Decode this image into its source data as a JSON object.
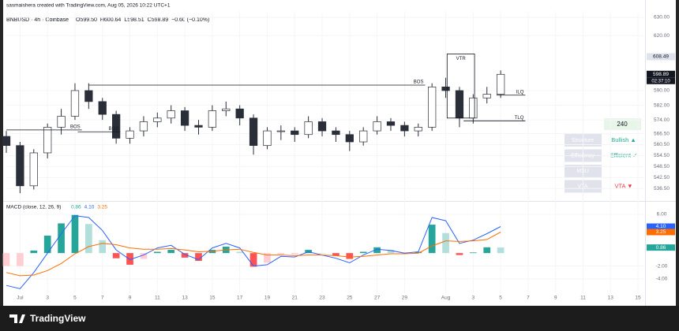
{
  "header": {
    "byline": "sasmaishera created with TradingView.com, Aug 05, 2026 10:22 UTC+1",
    "symbol": "BNBUSD · 4h · Coinbase",
    "ohlc": [
      "O599.50",
      "H600.64",
      "L598.51",
      "C598.89",
      "−0.60 (−0.10%)"
    ]
  },
  "chart_data": [
    {
      "type": "candlestick",
      "title": "BNBUSD · 4h · Coinbase",
      "x": [
        0,
        1,
        2,
        3,
        4,
        5,
        6,
        7,
        8,
        9,
        10,
        11,
        12,
        13,
        14,
        15,
        16,
        17,
        18,
        19,
        20,
        21,
        22,
        23,
        24,
        25,
        26,
        27,
        28,
        29,
        30,
        31,
        32,
        33,
        34,
        35,
        36
      ],
      "open": [
        565,
        560,
        538,
        556,
        570,
        576,
        590,
        584,
        577,
        564,
        568,
        573,
        575,
        579,
        571,
        570,
        579,
        580,
        575,
        560,
        568,
        568,
        566,
        573,
        568,
        566,
        562,
        568,
        573,
        571,
        568,
        570,
        592,
        590,
        575,
        586,
        588
      ],
      "high": [
        568,
        562,
        558,
        572,
        580,
        594,
        594,
        586,
        579,
        570,
        576,
        578,
        582,
        581,
        574,
        582,
        584,
        582,
        577,
        570,
        571,
        570,
        576,
        575,
        570,
        568,
        570,
        576,
        575,
        573,
        572,
        594,
        597,
        592,
        588,
        592,
        601
      ],
      "low": [
        556,
        534,
        536,
        553,
        566,
        574,
        580,
        574,
        561,
        561,
        565,
        570,
        572,
        568,
        566,
        568,
        576,
        571,
        555,
        558,
        563,
        562,
        564,
        565,
        562,
        557,
        560,
        566,
        568,
        565,
        565,
        568,
        586,
        570,
        572,
        583,
        586
      ],
      "close": [
        560,
        538,
        556,
        570,
        576,
        590,
        584,
        577,
        564,
        568,
        573,
        575,
        579,
        571,
        570,
        579,
        580,
        575,
        560,
        568,
        568,
        566,
        573,
        568,
        566,
        562,
        568,
        573,
        571,
        568,
        570,
        592,
        590,
        575,
        586,
        588,
        598.89
      ],
      "up_color": "#ffffff",
      "down_color": "#2a2e39",
      "wick_color": "#2a2e39",
      "xlim": [
        0,
        46.4
      ],
      "xticks": [
        {
          "value": 1,
          "label": "Jul"
        },
        3,
        5,
        7,
        9,
        11,
        13,
        15,
        17,
        19,
        21,
        23,
        25,
        27,
        29,
        {
          "value": 32,
          "label": "Aug"
        },
        {
          "value": 34,
          "label": "3"
        },
        {
          "value": 36,
          "label": "5"
        },
        {
          "value": 38,
          "label": "7"
        },
        {
          "value": 40,
          "label": "9"
        },
        {
          "value": 42,
          "label": "11"
        },
        {
          "value": 44,
          "label": "13"
        },
        {
          "value": 46,
          "label": "15"
        }
      ],
      "ylim": [
        530.6,
        633
      ],
      "yticks": [
        {
          "value": 630,
          "label": "630.00"
        },
        {
          "value": 620,
          "label": "620.00"
        },
        {
          "value": 590,
          "label": "590.00"
        },
        {
          "value": 582,
          "label": "582.00"
        },
        {
          "value": 574,
          "label": "574.00"
        },
        {
          "value": 566.5,
          "label": "566.50"
        },
        {
          "value": 560.5,
          "label": "560.50"
        },
        {
          "value": 554.5,
          "label": "554.50"
        },
        {
          "value": 548.5,
          "label": "548.50"
        },
        {
          "value": 542.5,
          "label": "542.50"
        },
        {
          "value": 536.5,
          "label": "536.50"
        }
      ],
      "grid": true,
      "badges": [
        {
          "value": 608.49,
          "label": "608.49",
          "color": "#e0e3eb",
          "text_color": "#131722"
        },
        {
          "value": 598.89,
          "label": "598.89",
          "color": "#131722",
          "text_color": "#ffffff"
        }
      ],
      "countdown": "02:37:10",
      "annotations": [
        {
          "text": "BOS",
          "price": 593,
          "x_from": 6,
          "x_to": 30.5
        },
        {
          "text": "BOS",
          "price": 568.5,
          "x_from": 0,
          "x_to": 5.5
        },
        {
          "text": "BOS",
          "price": 567.5,
          "x_from": 5.2,
          "x_to": 8.3
        },
        {
          "text": "ILQ",
          "price": 587.5,
          "x_from": 35.7,
          "x_to": 37.8
        },
        {
          "text": "TLQ",
          "price": 573.5,
          "x_from": 33.3,
          "x_to": 37.8
        }
      ],
      "boxes": [
        {
          "text": "VTR",
          "top": 610,
          "bottom": 575,
          "x_from": 32.1,
          "x_to": 34.1
        }
      ]
    },
    {
      "type": "macd",
      "title": "MACD (close, 12, 26, 9)",
      "series": [
        {
          "name": "MACD",
          "color": "#2962ff",
          "values": [
            -5,
            -5.5,
            -3,
            0,
            3,
            5.8,
            5.5,
            3.5,
            0.5,
            -1,
            -0.3,
            0.8,
            1.2,
            -0.2,
            -1,
            0.8,
            1.5,
            0.8,
            -2,
            -1.8,
            -0.5,
            -0.6,
            0.2,
            -0.3,
            -0.8,
            -1.5,
            -0.3,
            0.6,
            0.4,
            0,
            0.2,
            5.5,
            5,
            1.5,
            2,
            3,
            4.1
          ],
          "last_label": "4.10"
        },
        {
          "name": "Signal",
          "color": "#ff6d00",
          "values": [
            -3,
            -3.5,
            -3.4,
            -2.7,
            -1.6,
            -0.1,
            1,
            1.5,
            1.3,
            0.8,
            0.6,
            0.6,
            0.7,
            0.5,
            0.2,
            0.3,
            0.5,
            0.6,
            0.1,
            -0.3,
            -0.3,
            -0.4,
            -0.3,
            -0.3,
            -0.4,
            -0.6,
            -0.5,
            -0.3,
            -0.1,
            -0.1,
            0,
            1.1,
            1.9,
            1.8,
            1.9,
            2.1,
            3.25
          ],
          "last_label": "3.25"
        }
      ],
      "histogram": {
        "values": [
          -2,
          -2,
          0.4,
          2.7,
          4.6,
          5.9,
          4.5,
          2,
          -0.8,
          -1.8,
          -0.9,
          0.2,
          0.5,
          -0.7,
          -1.2,
          0.5,
          1,
          0.2,
          -2.1,
          -1.5,
          -0.2,
          -0.2,
          0.5,
          0,
          -0.4,
          -0.9,
          0.2,
          0.9,
          0.5,
          0.1,
          0.2,
          4.4,
          3.1,
          -0.3,
          0.1,
          0.9,
          0.86
        ],
        "last_label": "0.86",
        "colors": {
          "grow_above": "#26a69a",
          "fall_above": "#b2dfdb",
          "grow_below": "#ffcdd2",
          "fall_below": "#ff5252"
        }
      },
      "ylim": [
        -6.2,
        7.7
      ],
      "yticks": [
        {
          "value": 6,
          "label": "6.00"
        },
        {
          "value": -2,
          "label": "-2.00"
        },
        {
          "value": -4,
          "label": "-4.00"
        }
      ]
    }
  ],
  "panel": {
    "timeframe": "240",
    "rows": [
      {
        "label": "Structure",
        "status": "Bullish ▲",
        "color": "#22ab94"
      },
      {
        "label": "Efficiency",
        "status": "Efficient ✓",
        "color": "#22ab94"
      },
      {
        "label": "MSU"
      },
      {
        "label": "VTA",
        "status": "VTA ▼",
        "color": "#f23645"
      }
    ]
  },
  "footer": {
    "brand": "TradingView"
  }
}
